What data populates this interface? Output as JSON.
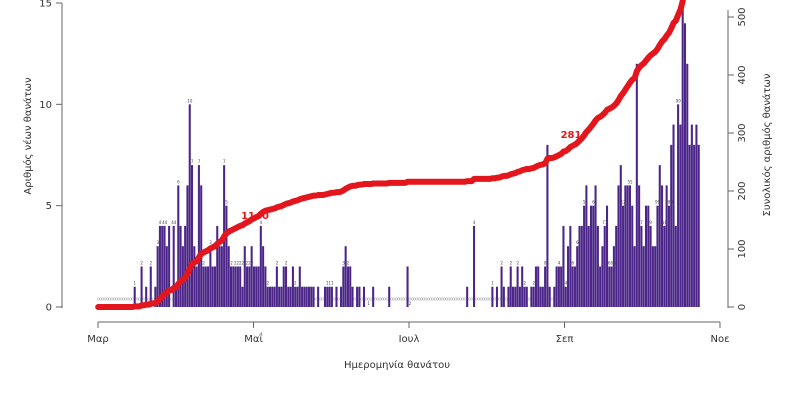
{
  "chart_data": {
    "type": "bar+line",
    "xlabel": "Ημερομηνία θανάτου",
    "ylabel_left": "Αριθμός νέων θανάτων",
    "ylabel_right": "Συνολικός αριθμός θανάτων",
    "x_ticks": [
      "Μαρ",
      "Μαΐ",
      "Ιουλ",
      "Σεπ",
      "Νοε"
    ],
    "ylim_left": [
      0,
      15
    ],
    "yticks_left": [
      "0",
      "5",
      "10",
      "15"
    ],
    "ylim_right": [
      0,
      540
    ],
    "yticks_right": [
      "0",
      "100",
      "200",
      "300",
      "400",
      "500"
    ],
    "colors": {
      "bars": "#4b2588",
      "line": "#e2161c",
      "axis": "#666666"
    },
    "series": [
      {
        "kind": "bar",
        "values": [
          0,
          0,
          0,
          0,
          0,
          0,
          0,
          0,
          0,
          0,
          0,
          0,
          0,
          0,
          0,
          0,
          1,
          0,
          0,
          2,
          0,
          1,
          0,
          2,
          0,
          1,
          3,
          4,
          4,
          4,
          3,
          4,
          0,
          4,
          1,
          6,
          4,
          3,
          4,
          6,
          10,
          7,
          3,
          2,
          7,
          6,
          2,
          2,
          2,
          3,
          2,
          2,
          4,
          3,
          3,
          7,
          5,
          3,
          2,
          2,
          2,
          2,
          2,
          1,
          3,
          2,
          2,
          3,
          2,
          2,
          2,
          4,
          3,
          2,
          1,
          1,
          1,
          1,
          2,
          1,
          1,
          2,
          2,
          1,
          1,
          2,
          1,
          1,
          2,
          1,
          1,
          1,
          1,
          1,
          1,
          0,
          1,
          0,
          0,
          1,
          1,
          1,
          1,
          0,
          1,
          0,
          1,
          2,
          3,
          2,
          2,
          1,
          0,
          1,
          1,
          0,
          1,
          0,
          0,
          0,
          1,
          0,
          0,
          0,
          0,
          0,
          0,
          1,
          0,
          0,
          0,
          0,
          0,
          0,
          0,
          2,
          0,
          0,
          0,
          0,
          0,
          0,
          0,
          0,
          0,
          0,
          0,
          0,
          0,
          0,
          0,
          0,
          0,
          0,
          0,
          0,
          0,
          0,
          0,
          0,
          0,
          1,
          0,
          0,
          4,
          0,
          0,
          0,
          0,
          0,
          0,
          0,
          1,
          0,
          1,
          0,
          2,
          1,
          0,
          1,
          2,
          1,
          1,
          2,
          1,
          2,
          1,
          1,
          0,
          1,
          1,
          2,
          2,
          1,
          1,
          2,
          8,
          1,
          0,
          1,
          2,
          2,
          2,
          4,
          1,
          3,
          4,
          2,
          2,
          3,
          4,
          4,
          5,
          6,
          4,
          5,
          5,
          6,
          4,
          2,
          3,
          4,
          5,
          2,
          2,
          3,
          4,
          6,
          7,
          5,
          6,
          6,
          6,
          5,
          3,
          12,
          6,
          4,
          3,
          5,
          5,
          4,
          3,
          3,
          5,
          7,
          6,
          4,
          6,
          5,
          8,
          9,
          4,
          10,
          9,
          15,
          14,
          12,
          8,
          9,
          8,
          9,
          8
        ]
      },
      {
        "kind": "line",
        "name": "Συνολικός αριθμός θανάτων",
        "ylim": [
          0,
          540
        ]
      }
    ],
    "bar_labels": [
      {
        "i": 16,
        "text": "1"
      },
      {
        "i": 19,
        "text": "2"
      },
      {
        "i": 23,
        "text": "2"
      },
      {
        "i": 26,
        "text": "3"
      },
      {
        "i": 27,
        "text": "4"
      },
      {
        "i": 29,
        "text": "44"
      },
      {
        "i": 33,
        "text": "44"
      },
      {
        "i": 35,
        "text": "6"
      },
      {
        "i": 40,
        "text": "10"
      },
      {
        "i": 41,
        "text": "7"
      },
      {
        "i": 44,
        "text": "7"
      },
      {
        "i": 46,
        "text": "2"
      },
      {
        "i": 49,
        "text": "3"
      },
      {
        "i": 55,
        "text": "7"
      },
      {
        "i": 56,
        "text": "5"
      },
      {
        "i": 59,
        "text": "2 2"
      },
      {
        "i": 62,
        "text": "222"
      },
      {
        "i": 66,
        "text": "222"
      },
      {
        "i": 71,
        "text": "4"
      },
      {
        "i": 74,
        "text": "2"
      },
      {
        "i": 78,
        "text": "2"
      },
      {
        "i": 82,
        "text": "2"
      },
      {
        "i": 86,
        "text": "2"
      },
      {
        "i": 101,
        "text": "111"
      },
      {
        "i": 107,
        "text": "3"
      },
      {
        "i": 109,
        "text": "2"
      },
      {
        "i": 118,
        "text": "1"
      },
      {
        "i": 136,
        "text": "2"
      },
      {
        "i": 164,
        "text": "4"
      },
      {
        "i": 172,
        "text": "1"
      },
      {
        "i": 176,
        "text": "2"
      },
      {
        "i": 180,
        "text": "2"
      },
      {
        "i": 183,
        "text": "2"
      },
      {
        "i": 186,
        "text": "2"
      },
      {
        "i": 190,
        "text": "2"
      },
      {
        "i": 195,
        "text": "8"
      },
      {
        "i": 201,
        "text": "4"
      },
      {
        "i": 204,
        "text": "4"
      },
      {
        "i": 207,
        "text": "6"
      },
      {
        "i": 209,
        "text": "6"
      },
      {
        "i": 212,
        "text": "5"
      },
      {
        "i": 216,
        "text": "6"
      },
      {
        "i": 221,
        "text": "77"
      },
      {
        "i": 224,
        "text": "666"
      },
      {
        "i": 229,
        "text": "12"
      },
      {
        "i": 232,
        "text": "55"
      },
      {
        "i": 237,
        "text": "7"
      },
      {
        "i": 241,
        "text": "9"
      },
      {
        "i": 244,
        "text": "99"
      },
      {
        "i": 247,
        "text": "10"
      },
      {
        "i": 249,
        "text": "183"
      },
      {
        "i": 253,
        "text": "99"
      }
    ],
    "annotations": [
      "1140",
      "281"
    ]
  }
}
